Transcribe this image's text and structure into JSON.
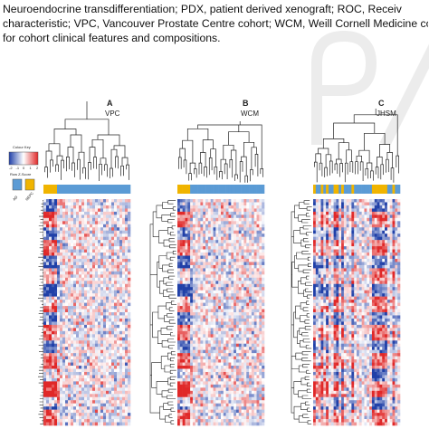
{
  "text": {
    "lines": [
      "Neuroendocrine  transdifferentiation;  PDX,  patient  derived  xenograft;  ROC,  Receiv",
      "characteristic; VPC, Vancouver Prostate Centre cohort; WCM, Weill Cornell Medicine cohor",
      "for cohort clinical features and compositions."
    ]
  },
  "colour_key": {
    "title": "Colour Key",
    "ticks": [
      "-2",
      "-1",
      "0",
      "1",
      "2"
    ],
    "subtitle": "Row Z-Score",
    "legend_swatches": [
      {
        "color": "#5b9bd5",
        "label": "AD"
      },
      {
        "color": "#f0b400",
        "label": "NEPC"
      }
    ],
    "gradient": {
      "low": "#2040a8",
      "mid": "#ffffff",
      "high": "#e02828"
    }
  },
  "panels": [
    {
      "letter": "A",
      "cohort": "VPC",
      "n_columns": 32,
      "group_bar": [
        1,
        1,
        1,
        1,
        1,
        0,
        0,
        0,
        0,
        0,
        0,
        0,
        0,
        0,
        0,
        0,
        0,
        0,
        0,
        0,
        0,
        0,
        0,
        0,
        0,
        0,
        0,
        0,
        0,
        0,
        0,
        0
      ]
    },
    {
      "letter": "B",
      "cohort": "WCM",
      "n_columns": 34,
      "group_bar": [
        1,
        1,
        1,
        1,
        1,
        0,
        0,
        0,
        0,
        0,
        0,
        0,
        0,
        0,
        0,
        0,
        0,
        0,
        0,
        0,
        0,
        0,
        0,
        0,
        0,
        0,
        0,
        0,
        0,
        0,
        0,
        0,
        0,
        0
      ]
    },
    {
      "letter": "C",
      "cohort": "JHSM",
      "n_columns": 34,
      "group_bar": [
        1,
        0,
        0,
        1,
        0,
        1,
        0,
        0,
        1,
        1,
        0,
        1,
        0,
        0,
        0,
        1,
        0,
        0,
        0,
        0,
        0,
        0,
        0,
        1,
        1,
        1,
        1,
        1,
        1,
        0,
        0,
        1,
        0,
        0
      ]
    }
  ]
}
